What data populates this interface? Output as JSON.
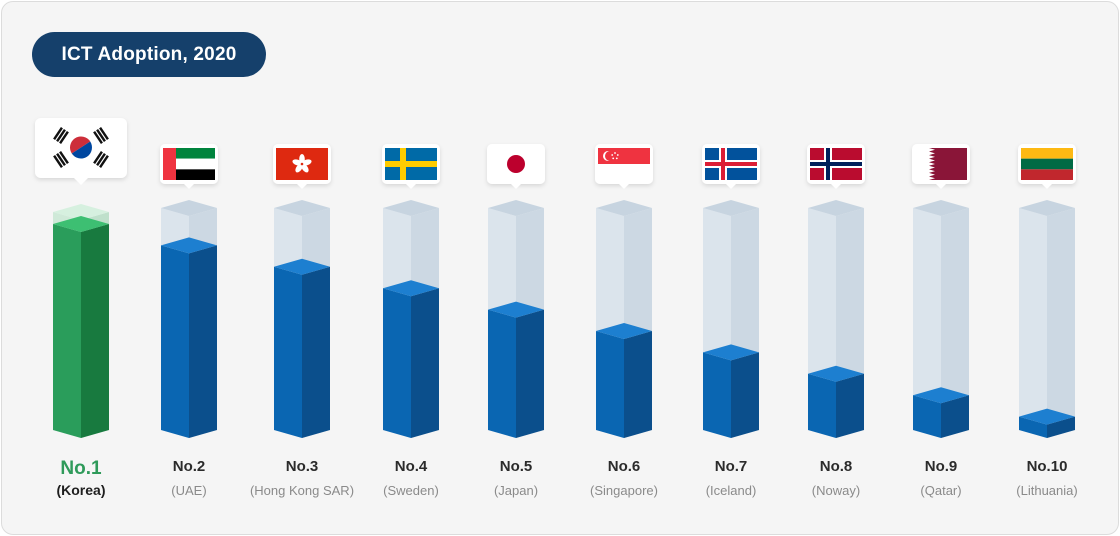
{
  "chart_data": {
    "type": "bar",
    "title": "ICT Adoption, 2020",
    "categories": [
      "Korea",
      "UAE",
      "Hong Kong SAR",
      "Sweden",
      "Japan",
      "Singapore",
      "Iceland",
      "Noway",
      "Qatar",
      "Lithuania"
    ],
    "values": [
      10,
      9,
      8,
      7,
      6,
      5,
      4,
      3,
      2,
      1
    ],
    "value_meaning": "relative bar height (higher rank = taller bar)",
    "ylim": [
      0,
      11
    ],
    "grid": false,
    "legend": "none",
    "bars": [
      {
        "rank": "No.1",
        "country": "(Korea)",
        "flag": "south-korea",
        "highlight": true
      },
      {
        "rank": "No.2",
        "country": "(UAE)",
        "flag": "uae",
        "highlight": false
      },
      {
        "rank": "No.3",
        "country": "(Hong Kong SAR)",
        "flag": "hong-kong",
        "highlight": false
      },
      {
        "rank": "No.4",
        "country": "(Sweden)",
        "flag": "sweden",
        "highlight": false
      },
      {
        "rank": "No.5",
        "country": "(Japan)",
        "flag": "japan",
        "highlight": false
      },
      {
        "rank": "No.6",
        "country": "(Singapore)",
        "flag": "singapore",
        "highlight": false
      },
      {
        "rank": "No.7",
        "country": "(Iceland)",
        "flag": "iceland",
        "highlight": false
      },
      {
        "rank": "No.8",
        "country": "(Noway)",
        "flag": "norway",
        "highlight": false
      },
      {
        "rank": "No.9",
        "country": "(Qatar)",
        "flag": "qatar",
        "highlight": false
      },
      {
        "rank": "No.10",
        "country": "(Lithuania)",
        "flag": "lithuania",
        "highlight": false
      }
    ]
  },
  "colors": {
    "title_bg": "#15406b",
    "title_text": "#ffffff",
    "bar_front": "#0a66b2",
    "bar_side": "#0b4f8c",
    "bar_top": "#1d7fd0",
    "winner_front": "#2a9d5b",
    "winner_side": "#187a3f",
    "winner_top": "#3dbf72",
    "track_front": "#dbe4ec",
    "track_side": "#ccd8e3",
    "track_top": "#c7d4e0",
    "winner_rank_text": "#2f9a5a"
  }
}
